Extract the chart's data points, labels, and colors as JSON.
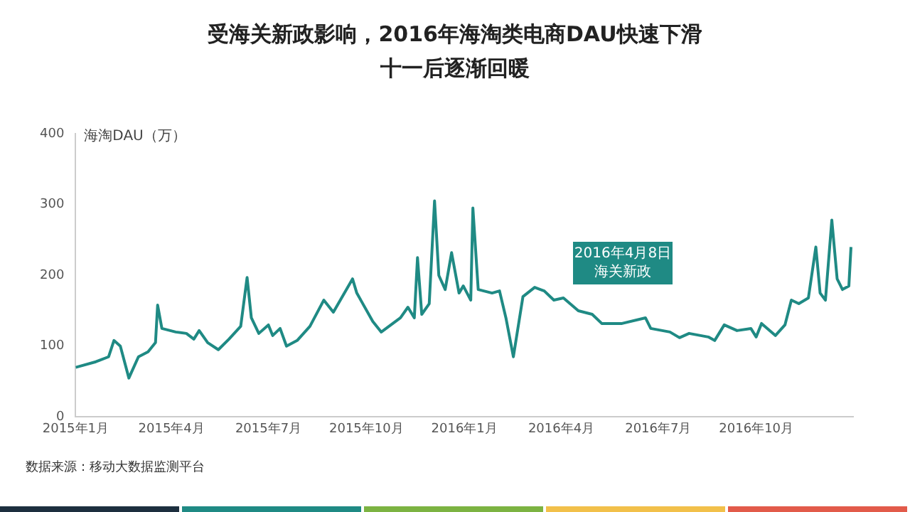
{
  "chart_data": {
    "type": "line",
    "title": "受海关新政影响，2016年海淘类电商DAU快速下滑十一后逐渐回暖",
    "ylabel": "海淘DAU（万）",
    "annotations": [
      "2016年4月8日海关新政",
      "数据来源：移动大数据监测平台"
    ],
    "xlim": [
      "2015-01-01",
      "2016-12-31"
    ],
    "xticks": [
      {
        "value": "2015-01",
        "label": "2015年1月"
      },
      {
        "value": "2015-04",
        "label": "2015年4月"
      },
      {
        "value": "2015-07",
        "label": "2015年7月"
      },
      {
        "value": "2015-10",
        "label": "2015年10月"
      },
      {
        "value": "2016-01",
        "label": "2016年1月"
      },
      {
        "value": "2016-04",
        "label": "2016年4月"
      },
      {
        "value": "2016-07",
        "label": "2016年7月"
      },
      {
        "value": "2016-10",
        "label": "2016年10月"
      }
    ],
    "ylim": [
      0,
      400
    ],
    "yticks": [
      0,
      100,
      200,
      300,
      400
    ],
    "grid": false,
    "legend": false,
    "marker": "none",
    "line_style": "solid",
    "x": [
      "2015-01-01",
      "2015-01-20",
      "2015-02-01",
      "2015-02-06",
      "2015-02-12",
      "2015-02-20",
      "2015-03-01",
      "2015-03-10",
      "2015-03-17",
      "2015-03-19",
      "2015-03-23",
      "2015-04-05",
      "2015-04-15",
      "2015-04-22",
      "2015-04-27",
      "2015-05-05",
      "2015-05-15",
      "2015-05-25",
      "2015-06-05",
      "2015-06-11",
      "2015-06-15",
      "2015-06-22",
      "2015-07-01",
      "2015-07-05",
      "2015-07-12",
      "2015-07-18",
      "2015-07-28",
      "2015-08-09",
      "2015-08-22",
      "2015-08-31",
      "2015-09-18",
      "2015-09-22",
      "2015-10-07",
      "2015-10-15",
      "2015-11-02",
      "2015-11-09",
      "2015-11-15",
      "2015-11-18",
      "2015-11-22",
      "2015-11-29",
      "2015-12-04",
      "2015-12-08",
      "2015-12-14",
      "2015-12-20",
      "2015-12-27",
      "2015-12-31",
      "2016-01-07",
      "2016-01-09",
      "2016-01-14",
      "2016-01-27",
      "2016-02-03",
      "2016-02-09",
      "2016-02-16",
      "2016-02-25",
      "2016-03-07",
      "2016-03-16",
      "2016-03-25",
      "2016-04-03",
      "2016-04-17",
      "2016-04-30",
      "2016-05-09",
      "2016-05-28",
      "2016-06-19",
      "2016-06-24",
      "2016-07-12",
      "2016-07-21",
      "2016-07-30",
      "2016-08-17",
      "2016-08-23",
      "2016-09-01",
      "2016-09-13",
      "2016-09-26",
      "2016-10-01",
      "2016-10-06",
      "2016-10-19",
      "2016-10-28",
      "2016-11-03",
      "2016-11-10",
      "2016-11-19",
      "2016-11-26",
      "2016-11-30",
      "2016-12-05",
      "2016-12-11",
      "2016-12-16",
      "2016-12-21",
      "2016-12-27",
      "2016-12-29"
    ],
    "series": [
      {
        "color": "#1f8a84",
        "values": [
          70,
          78,
          85,
          108,
          100,
          55,
          85,
          92,
          105,
          158,
          125,
          120,
          118,
          110,
          122,
          105,
          95,
          110,
          128,
          197,
          140,
          118,
          130,
          115,
          125,
          100,
          108,
          128,
          165,
          148,
          195,
          175,
          135,
          120,
          140,
          155,
          140,
          225,
          145,
          160,
          305,
          200,
          180,
          232,
          175,
          185,
          165,
          295,
          180,
          175,
          178,
          140,
          85,
          170,
          183,
          178,
          165,
          168,
          150,
          145,
          132,
          132,
          140,
          125,
          120,
          112,
          118,
          113,
          108,
          130,
          122,
          125,
          113,
          132,
          115,
          130,
          165,
          160,
          168,
          240,
          175,
          165,
          278,
          195,
          180,
          185,
          240
        ]
      }
    ]
  }
}
